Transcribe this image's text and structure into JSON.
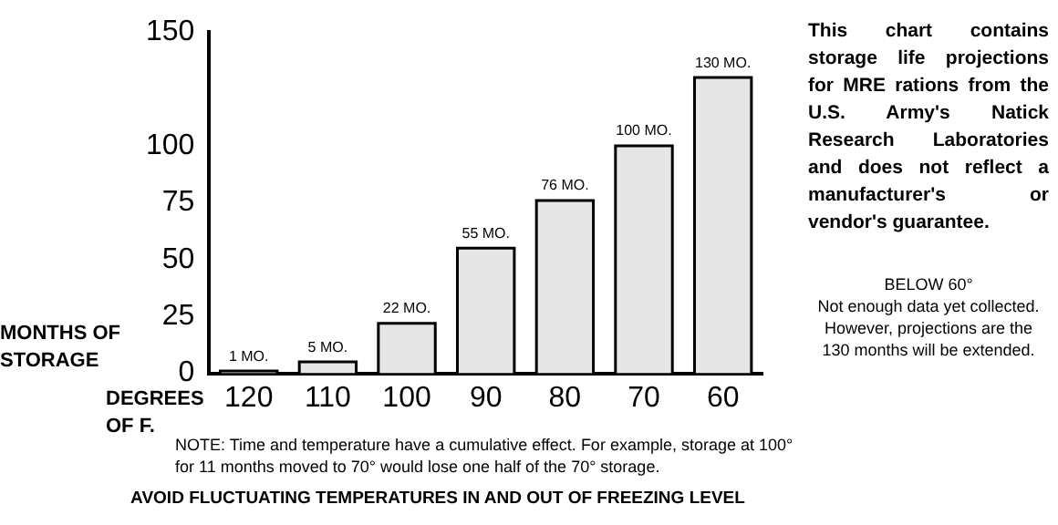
{
  "chart_data": {
    "type": "bar",
    "xlabel": "DEGREES OF F.",
    "ylabel": "MONTHS OF STORAGE",
    "categories": [
      "120",
      "110",
      "100",
      "90",
      "80",
      "70",
      "60"
    ],
    "values": [
      1,
      5,
      22,
      55,
      76,
      100,
      130
    ],
    "value_labels": [
      "1 MO.",
      "5 MO.",
      "22 MO.",
      "55 MO.",
      "76 MO.",
      "100 MO.",
      "130 MO."
    ],
    "color": "#e6e6e6",
    "ylim": [
      0,
      150
    ],
    "yticks": [
      0,
      25,
      50,
      75,
      100,
      150
    ],
    "grid": false,
    "legend": false,
    "annotations": [
      "This chart contains storage life projections for MRE rations from the U.S. Army's Natick Research Laboratories and does not reflect a manufacturer's or vendor's guarantee.",
      "BELOW 60°\nNot enough data yet collected.\nHowever, projections are the\n130 months will be extended.",
      "NOTE: Time and temperature have a cumulative effect.  For example, storage at 100° for 11 months moved to 70° would lose one half of the  70° storage.",
      "AVOID FLUCTUATING TEMPERATURES IN AND OUT OF FREEZING LEVEL"
    ]
  }
}
